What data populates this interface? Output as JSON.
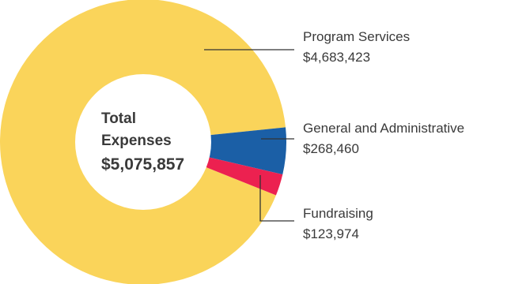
{
  "chart_data": {
    "type": "pie",
    "center": {
      "line1": "Total",
      "line2": "Expenses",
      "line3": "$5,075,857"
    },
    "total": 5075857,
    "slices": [
      {
        "label": "Program Services",
        "value_label": "$4,683,423",
        "value": 4683423,
        "color": "#FAD45A"
      },
      {
        "label": "General and Administrative",
        "value_label": "$268,460",
        "value": 268460,
        "color": "#1B5FA6"
      },
      {
        "label": "Fundraising",
        "value_label": "$123,974",
        "value": 123974,
        "color": "#EC2150"
      }
    ]
  }
}
